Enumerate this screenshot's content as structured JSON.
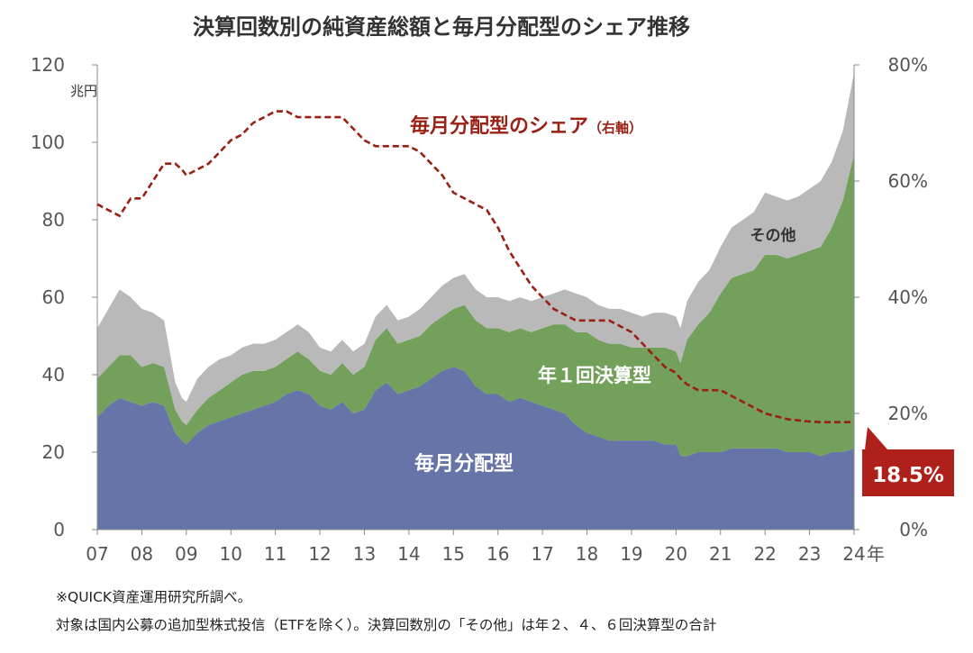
{
  "chart_data": {
    "type": "area",
    "title": "決算回数別の純資産総額と毎月分配型のシェア推移",
    "y_unit": "兆円",
    "x_unit": "年",
    "x_ticks": [
      "07",
      "08",
      "09",
      "10",
      "11",
      "12",
      "13",
      "14",
      "15",
      "16",
      "17",
      "18",
      "19",
      "20",
      "21",
      "22",
      "23",
      "24"
    ],
    "y_left_ticks": [
      "0",
      "20",
      "40",
      "60",
      "80",
      "100",
      "120"
    ],
    "y_right_ticks": [
      "0%",
      "20%",
      "40%",
      "60%",
      "80%"
    ],
    "ylim_left": [
      0,
      120
    ],
    "ylim_right": [
      0,
      80
    ],
    "x": [
      2007.0,
      2007.25,
      2007.5,
      2007.75,
      2008.0,
      2008.25,
      2008.5,
      2008.75,
      2008.9,
      2009.0,
      2009.25,
      2009.5,
      2009.75,
      2010.0,
      2010.25,
      2010.5,
      2010.75,
      2011.0,
      2011.25,
      2011.5,
      2011.75,
      2012.0,
      2012.25,
      2012.5,
      2012.75,
      2013.0,
      2013.25,
      2013.5,
      2013.75,
      2014.0,
      2014.25,
      2014.5,
      2014.75,
      2015.0,
      2015.25,
      2015.5,
      2015.75,
      2016.0,
      2016.25,
      2016.5,
      2016.75,
      2017.0,
      2017.25,
      2017.5,
      2017.75,
      2018.0,
      2018.25,
      2018.5,
      2018.75,
      2019.0,
      2019.25,
      2019.5,
      2019.75,
      2020.0,
      2020.1,
      2020.25,
      2020.5,
      2020.75,
      2021.0,
      2021.25,
      2021.5,
      2021.75,
      2022.0,
      2022.25,
      2022.5,
      2022.75,
      2023.0,
      2023.25,
      2023.5,
      2023.75,
      2024.0
    ],
    "series": [
      {
        "name": "毎月分配型",
        "color": "#6674a8",
        "values": [
          29,
          32,
          34,
          33,
          32,
          33,
          32,
          25,
          23,
          22,
          25,
          27,
          28,
          29,
          30,
          31,
          32,
          33,
          35,
          36,
          35,
          32,
          31,
          33,
          30,
          31,
          36,
          38,
          35,
          36,
          37,
          39,
          41,
          42,
          41,
          37,
          35,
          35,
          33,
          34,
          33,
          32,
          31,
          30,
          27,
          25,
          24,
          23,
          23,
          23,
          23,
          23,
          22,
          22,
          19,
          19,
          20,
          20,
          20,
          21,
          21,
          21,
          21,
          21,
          20,
          20,
          20,
          19,
          20,
          20,
          21
        ]
      },
      {
        "name": "年１回決算型",
        "color": "#73a05a",
        "values": [
          10,
          10,
          11,
          12,
          10,
          10,
          10,
          6,
          5,
          5,
          6,
          7,
          8,
          9,
          10,
          10,
          9,
          9,
          9,
          10,
          9,
          9,
          9,
          10,
          10,
          11,
          13,
          14,
          13,
          13,
          13,
          14,
          14,
          15,
          17,
          17,
          17,
          17,
          18,
          18,
          18,
          20,
          22,
          23,
          24,
          26,
          25,
          25,
          25,
          24,
          24,
          24,
          25,
          24,
          24,
          30,
          33,
          36,
          41,
          44,
          45,
          46,
          50,
          50,
          50,
          51,
          52,
          54,
          58,
          65,
          76
        ]
      },
      {
        "name": "その他",
        "color": "#b9b9b9",
        "values": [
          13,
          15,
          17,
          15,
          15,
          13,
          12,
          7,
          6,
          6,
          8,
          8,
          8,
          7,
          7,
          7,
          7,
          7,
          7,
          7,
          7,
          6,
          6,
          6,
          6,
          6,
          6,
          6,
          6,
          6,
          7,
          7,
          8,
          8,
          8,
          8,
          8,
          8,
          8,
          8,
          8,
          8,
          8,
          9,
          10,
          9,
          9,
          9,
          9,
          9,
          8,
          9,
          9,
          9,
          9,
          10,
          11,
          11,
          12,
          13,
          14,
          15,
          16,
          15,
          15,
          15,
          16,
          17,
          17,
          18,
          21
        ]
      }
    ],
    "share_series": {
      "name": "毎月分配型のシェア（右軸）",
      "color": "#9a1f14",
      "values": [
        56,
        55,
        54,
        57,
        57,
        60,
        63,
        63,
        62,
        61,
        62,
        63,
        65,
        67,
        68,
        70,
        71,
        72,
        72,
        71,
        71,
        71,
        71,
        71,
        69,
        67,
        66,
        66,
        66,
        66,
        65,
        63,
        61,
        58,
        57,
        56,
        55,
        52,
        48,
        45,
        42,
        40,
        38,
        37,
        36,
        36,
        36,
        36,
        35,
        34,
        32,
        30,
        28,
        27,
        26,
        25,
        24,
        24,
        24,
        23,
        22,
        21,
        20,
        19.5,
        19,
        18.8,
        18.6,
        18.5,
        18.5,
        18.5,
        18.5
      ]
    },
    "annotations": {
      "share_label": "毎月分配型のシェア",
      "share_axis_note": "（右軸）",
      "label_monthly": "毎月分配型",
      "label_annual": "年１回決算型",
      "label_other": "その他",
      "last_value": "18.5%"
    },
    "grid": false,
    "legend": "none"
  },
  "notes": {
    "source": "※QUICK資産運用研究所調べ。",
    "footnote": "対象は国内公募の追加型株式投信（ETFを除く）。決算回数別の「その他」は年２、４、６回決算型の合計"
  }
}
